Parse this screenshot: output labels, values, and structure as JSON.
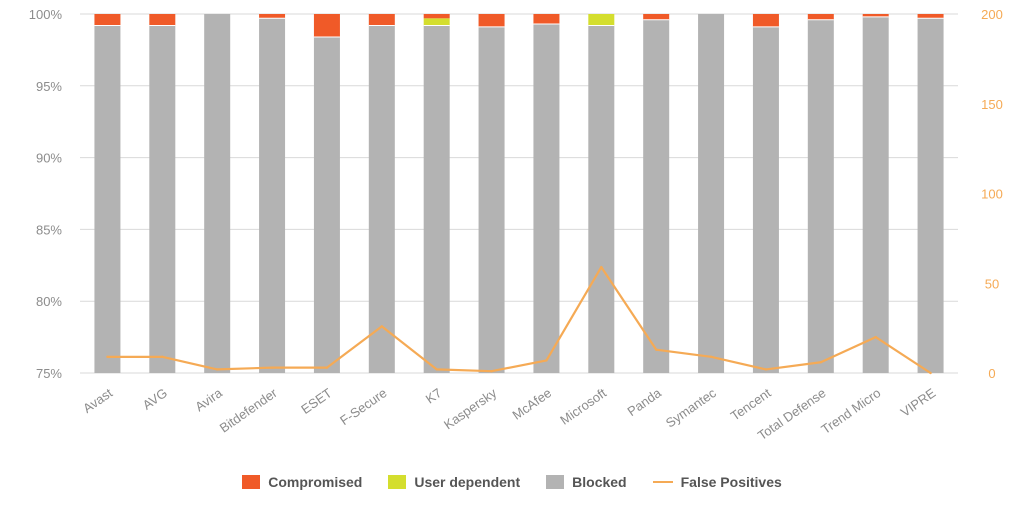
{
  "chart_data": {
    "type": "bar",
    "stacked": true,
    "categories": [
      "Avast",
      "AVG",
      "Avira",
      "Bitdefender",
      "ESET",
      "F-Secure",
      "K7",
      "Kaspersky",
      "McAfee",
      "Microsoft",
      "Panda",
      "Symantec",
      "Tencent",
      "Total Defense",
      "Trend Micro",
      "VIPRE"
    ],
    "series": [
      {
        "name": "Blocked",
        "values": [
          99.2,
          99.2,
          100.0,
          99.7,
          98.4,
          99.2,
          99.2,
          99.1,
          99.3,
          99.2,
          99.6,
          100.0,
          99.1,
          99.6,
          99.8,
          99.7
        ],
        "color": "#b3b3b3"
      },
      {
        "name": "User dependent",
        "values": [
          0,
          0,
          0,
          0,
          0,
          0,
          0.5,
          0,
          0,
          0.8,
          0,
          0,
          0,
          0,
          0,
          0
        ],
        "color": "#d4de2e"
      },
      {
        "name": "Compromised",
        "values": [
          0.8,
          0.8,
          0,
          0.3,
          1.6,
          0.8,
          0.3,
          0.9,
          0.7,
          0,
          0.4,
          0,
          0.9,
          0.4,
          0.2,
          0.3
        ],
        "color": "#f05a28"
      },
      {
        "name": "False Positives",
        "type": "line",
        "axis": "right",
        "values": [
          9,
          9,
          2,
          3,
          3,
          26,
          2,
          1,
          7,
          59,
          13,
          9,
          2,
          6,
          20,
          0
        ],
        "color": "#f5aa55"
      }
    ],
    "y_left": {
      "ticks": [
        "75%",
        "80%",
        "85%",
        "90%",
        "95%",
        "100%"
      ],
      "min": 75,
      "max": 100
    },
    "y_right": {
      "ticks": [
        "0",
        "50",
        "100",
        "150",
        "200"
      ],
      "min": 0,
      "max": 200
    },
    "grid": true,
    "legend_position": "bottom",
    "legend_order": [
      "Compromised",
      "User dependent",
      "Blocked",
      "False Positives"
    ]
  }
}
